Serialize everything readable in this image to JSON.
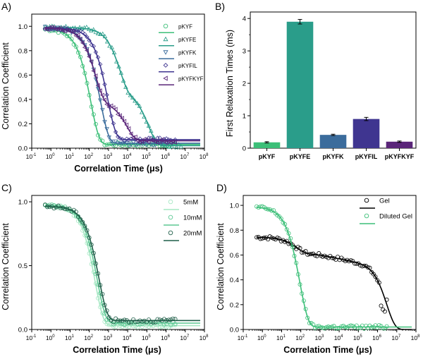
{
  "panels": [
    {
      "label": "A)",
      "chart_data": {
        "type": "scatter",
        "xscale": "log",
        "xlim": [
          0.1,
          100000000
        ],
        "ylim": [
          0.0,
          1.1
        ],
        "xlabel": "Correlation Time (μs)",
        "ylabel": "Correlation Coefficient",
        "xticks": [
          {
            "value": 0.1,
            "base": "10",
            "exp": "-1"
          },
          {
            "value": 1,
            "base": "10",
            "exp": "0"
          },
          {
            "value": 10,
            "base": "10",
            "exp": "1"
          },
          {
            "value": 100,
            "base": "10",
            "exp": "2"
          },
          {
            "value": 1000,
            "base": "10",
            "exp": "3"
          },
          {
            "value": 10000,
            "base": "10",
            "exp": "4"
          },
          {
            "value": 100000,
            "base": "10",
            "exp": "5"
          },
          {
            "value": 1000000,
            "base": "10",
            "exp": "6"
          },
          {
            "value": 10000000,
            "base": "10",
            "exp": "7"
          },
          {
            "value": 100000000,
            "base": "10",
            "exp": "8"
          }
        ],
        "yticks": [
          "0.0",
          "0.2",
          "0.4",
          "0.6",
          "0.8",
          "1.0"
        ],
        "yticks_values": [
          0,
          0.2,
          0.4,
          0.6,
          0.8,
          1.0
        ],
        "legend_position": "top-right",
        "series": [
          {
            "name": "pKYF",
            "marker": "circle",
            "color": "#3cbf78",
            "fit": {
              "a0": 0.985,
              "b": 0.03,
              "comps": [
                [
                  0.95,
                  120,
                  1
                ]
              ],
              "plateau": [
                1000000,
                0.08
              ]
            }
          },
          {
            "name": "pKYFE",
            "marker": "triangle-up",
            "color": "#2a9d8a",
            "fit": {
              "a0": 0.985,
              "b": 0.02,
              "comps": [
                [
                  0.52,
                  3800,
                  1
                ],
                [
                  0.45,
                  120000,
                  1
                ]
              ],
              "plateau": [
                2000000,
                0.05
              ]
            }
          },
          {
            "name": "pKYFK",
            "marker": "triangle-down",
            "color": "#3b6c9c",
            "fit": {
              "a0": 0.985,
              "b": 0.04,
              "comps": [
                [
                  0.945,
                  380,
                  1
                ]
              ]
            }
          },
          {
            "name": "pKYFIL",
            "marker": "diamond",
            "color": "#3f3590",
            "fit": {
              "a0": 0.985,
              "b": 0.07,
              "comps": [
                [
                  0.915,
                  900,
                  1
                ]
              ]
            }
          },
          {
            "name": "pKYFKYF",
            "marker": "triangle-left",
            "color": "#5a2579",
            "fit": {
              "a0": 0.985,
              "b": 0.06,
              "comps": [
                [
                  0.6,
                  210,
                  1
                ],
                [
                  0.325,
                  9000,
                  1
                ]
              ]
            }
          }
        ]
      }
    },
    {
      "label": "B)",
      "chart_data": {
        "type": "bar",
        "categories": [
          "pKYF",
          "pKYFE",
          "pKYFK",
          "pKYFIL",
          "pKYFKYF"
        ],
        "values": [
          0.18,
          3.9,
          0.41,
          0.9,
          0.2
        ],
        "errors": [
          0.02,
          0.07,
          0.02,
          0.05,
          0.02
        ],
        "colors": [
          "#3cbf78",
          "#2a9d8a",
          "#3b6c9c",
          "#3f3590",
          "#5a2579"
        ],
        "xlabel": "",
        "ylabel": "First Relaxation Times (ms)",
        "ylim": [
          0,
          4.2
        ],
        "yticks": [
          "0",
          "1",
          "2",
          "3",
          "4"
        ],
        "yticks_values": [
          0,
          1,
          2,
          3,
          4
        ]
      }
    },
    {
      "label": "C)",
      "chart_data": {
        "type": "scatter",
        "xscale": "log",
        "xlim": [
          0.1,
          100000000
        ],
        "ylim": [
          0.0,
          1.05
        ],
        "xlabel": "Correlation Time (μs)",
        "ylabel": "Correlation Coefficient",
        "xticks": [
          {
            "value": 0.1,
            "base": "10",
            "exp": "-1"
          },
          {
            "value": 1,
            "base": "10",
            "exp": "0"
          },
          {
            "value": 10,
            "base": "10",
            "exp": "1"
          },
          {
            "value": 100,
            "base": "10",
            "exp": "2"
          },
          {
            "value": 1000,
            "base": "10",
            "exp": "3"
          },
          {
            "value": 10000,
            "base": "10",
            "exp": "4"
          },
          {
            "value": 100000,
            "base": "10",
            "exp": "5"
          },
          {
            "value": 1000000,
            "base": "10",
            "exp": "6"
          },
          {
            "value": 10000000,
            "base": "10",
            "exp": "7"
          },
          {
            "value": 100000000,
            "base": "10",
            "exp": "8"
          }
        ],
        "yticks": [
          "0.0",
          "0.5",
          "1.0"
        ],
        "yticks_values": [
          0,
          0.5,
          1.0
        ],
        "legend_position": "top-right",
        "series": [
          {
            "name": "5mM",
            "marker": "circle",
            "color": "#a6e8c4",
            "fit": {
              "a0": 0.975,
              "b": 0.03,
              "comps": [
                [
                  0.945,
                  200,
                  1
                ]
              ]
            }
          },
          {
            "name": "10mM",
            "marker": "circle",
            "color": "#5dc994",
            "fit": {
              "a0": 0.97,
              "b": 0.05,
              "comps": [
                [
                  0.92,
                  260,
                  1
                ]
              ]
            }
          },
          {
            "name": "20mM",
            "marker": "circle",
            "color": "#1e5e48",
            "fit": {
              "a0": 0.965,
              "b": 0.07,
              "comps": [
                [
                  0.895,
                  320,
                  1
                ]
              ]
            }
          }
        ]
      }
    },
    {
      "label": "D)",
      "chart_data": {
        "type": "scatter",
        "xscale": "log",
        "xlim": [
          0.1,
          100000000
        ],
        "ylim": [
          0.0,
          1.08
        ],
        "xlabel": "Correlation Time (μs)",
        "ylabel": "Correlation Coefficient",
        "xticks": [
          {
            "value": 0.1,
            "base": "10",
            "exp": "-1"
          },
          {
            "value": 1,
            "base": "10",
            "exp": "0"
          },
          {
            "value": 10,
            "base": "10",
            "exp": "1"
          },
          {
            "value": 100,
            "base": "10",
            "exp": "2"
          },
          {
            "value": 1000,
            "base": "10",
            "exp": "3"
          },
          {
            "value": 10000,
            "base": "10",
            "exp": "4"
          },
          {
            "value": 100000,
            "base": "10",
            "exp": "5"
          },
          {
            "value": 1000000,
            "base": "10",
            "exp": "6"
          },
          {
            "value": 10000000,
            "base": "10",
            "exp": "7"
          },
          {
            "value": 100000000,
            "base": "10",
            "exp": "8"
          }
        ],
        "yticks": [
          "0.0",
          "0.2",
          "0.4",
          "0.6",
          "0.8",
          "1.0"
        ],
        "yticks_values": [
          0,
          0.2,
          0.4,
          0.6,
          0.8,
          1.0
        ],
        "legend_position": "top-right",
        "series": [
          {
            "name": "Gel",
            "marker": "circle",
            "color": "#000000",
            "fit": {
              "a0": 0.745,
              "b": 0.0,
              "comps": [
                [
                  0.12,
                  60,
                  1
                ],
                [
                  0.075,
                  6000,
                  0.45
                ],
                [
                  0.55,
                  3000000,
                  1
                ]
              ]
            }
          },
          {
            "name": "Diluted Gel",
            "marker": "circle",
            "color": "#3cbf78",
            "fit": {
              "a0": 0.99,
              "b": 0.02,
              "comps": [
                [
                  0.97,
                  90,
                  1
                ]
              ]
            }
          }
        ]
      }
    }
  ]
}
